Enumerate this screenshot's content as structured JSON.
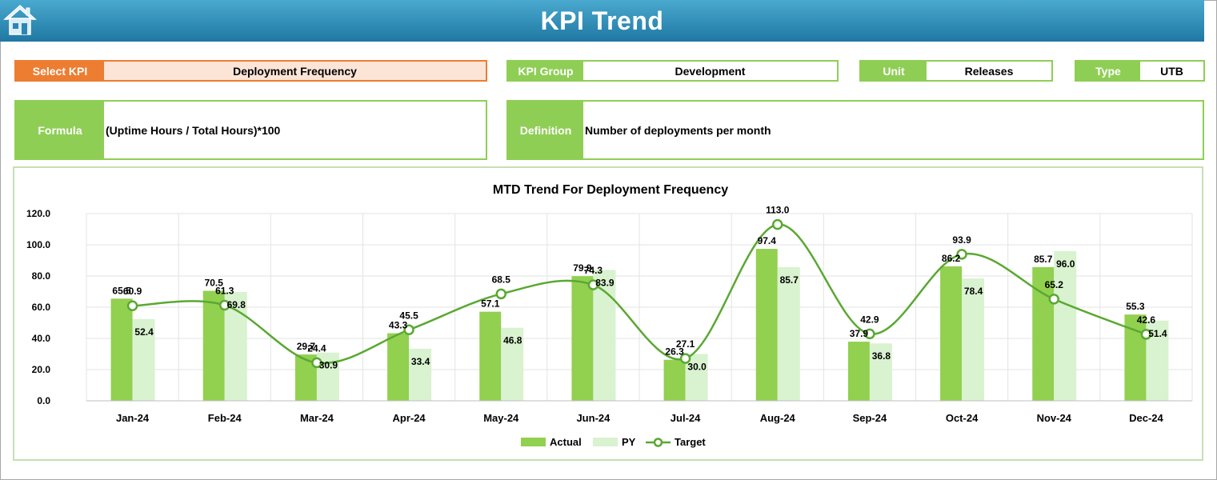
{
  "header": {
    "title": "KPI Trend",
    "home_icon": "home-icon"
  },
  "fields": {
    "kpi": {
      "label": "Select KPI",
      "value": "Deployment Frequency"
    },
    "group": {
      "label": "KPI Group",
      "value": "Development"
    },
    "unit": {
      "label": "Unit",
      "value": "Releases"
    },
    "type": {
      "label": "Type",
      "value": "UTB"
    },
    "formula": {
      "label": "Formula",
      "value": "(Uptime Hours / Total Hours)*100"
    },
    "definition": {
      "label": "Definition",
      "value": "Number of deployments per month"
    }
  },
  "colors": {
    "header": "#2b86b3",
    "accent_green": "#8fce55",
    "select_orange": "#ed7d31",
    "select_bg": "#fce4d6",
    "actual": "#92d050",
    "py": "#d9f2d0",
    "target": "#5aa832"
  },
  "chart_data": {
    "type": "bar",
    "title": "MTD Trend For Deployment Frequency",
    "categories": [
      "Jan-24",
      "Feb-24",
      "Mar-24",
      "Apr-24",
      "May-24",
      "Jun-24",
      "Jul-24",
      "Aug-24",
      "Sep-24",
      "Oct-24",
      "Nov-24",
      "Dec-24"
    ],
    "series": [
      {
        "name": "Actual",
        "type": "bar",
        "values": [
          65.5,
          70.5,
          29.7,
          43.3,
          57.1,
          79.9,
          26.3,
          97.4,
          37.9,
          86.2,
          85.7,
          55.3
        ]
      },
      {
        "name": "PY",
        "type": "bar",
        "values": [
          52.4,
          69.8,
          30.9,
          33.4,
          46.8,
          83.9,
          30.0,
          85.7,
          36.8,
          78.4,
          96.0,
          51.4
        ]
      },
      {
        "name": "Target",
        "type": "line",
        "values": [
          60.9,
          61.3,
          24.4,
          45.5,
          68.5,
          74.3,
          27.1,
          113.0,
          42.9,
          93.9,
          65.2,
          42.6
        ]
      }
    ],
    "ylim": [
      0,
      120
    ],
    "yticks": [
      "0.0",
      "20.0",
      "40.0",
      "60.0",
      "80.0",
      "100.0",
      "120.0"
    ],
    "grid": true,
    "legend": "bottom"
  }
}
